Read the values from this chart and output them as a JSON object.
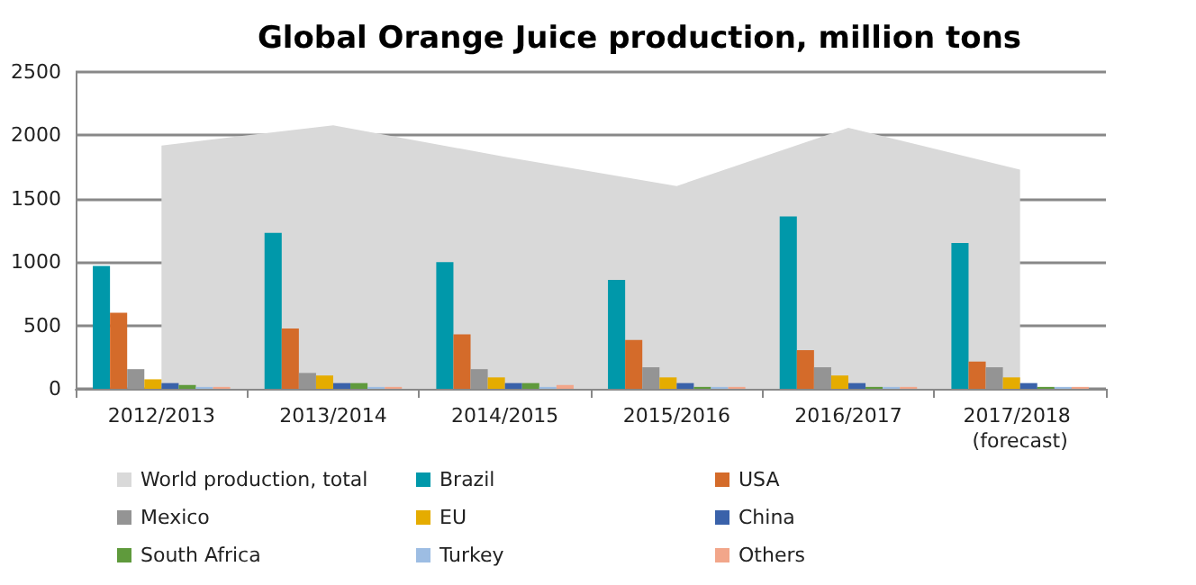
{
  "chart_data": {
    "type": "bar",
    "title": "Global Orange Juice production, million tons",
    "categories": [
      "2012/2013",
      "2013/2014",
      "2014/2015",
      "2015/2016",
      "2016/2017",
      "2017/2018 (forecast)"
    ],
    "series": [
      {
        "name": "World production, total",
        "type": "area",
        "color": "#d9d9d9",
        "values": [
          1920,
          2080,
          1830,
          1600,
          2060,
          1730
        ]
      },
      {
        "name": "Brazil",
        "color": "#0098aa",
        "values": [
          970,
          1230,
          1000,
          860,
          1360,
          1150
        ]
      },
      {
        "name": "USA",
        "color": "#d46b2a",
        "values": [
          600,
          475,
          430,
          385,
          305,
          215
        ]
      },
      {
        "name": "Mexico",
        "color": "#949494",
        "values": [
          155,
          125,
          155,
          170,
          170,
          170
        ]
      },
      {
        "name": "EU",
        "color": "#e5ac00",
        "values": [
          75,
          105,
          90,
          90,
          105,
          90
        ]
      },
      {
        "name": "China",
        "color": "#3a62aa",
        "values": [
          45,
          45,
          45,
          45,
          45,
          45
        ]
      },
      {
        "name": "South Africa",
        "color": "#5f9a3c",
        "values": [
          30,
          45,
          45,
          15,
          15,
          15
        ]
      },
      {
        "name": "Turkey",
        "color": "#9dbde3",
        "values": [
          15,
          15,
          15,
          15,
          15,
          15
        ]
      },
      {
        "name": "Others",
        "color": "#f2a68a",
        "values": [
          15,
          15,
          30,
          15,
          15,
          15
        ]
      }
    ],
    "ylim": [
      0,
      2500
    ],
    "yticks": [
      0,
      500,
      1000,
      1500,
      2000,
      2500
    ],
    "grid": "y",
    "legend": "bottom"
  }
}
